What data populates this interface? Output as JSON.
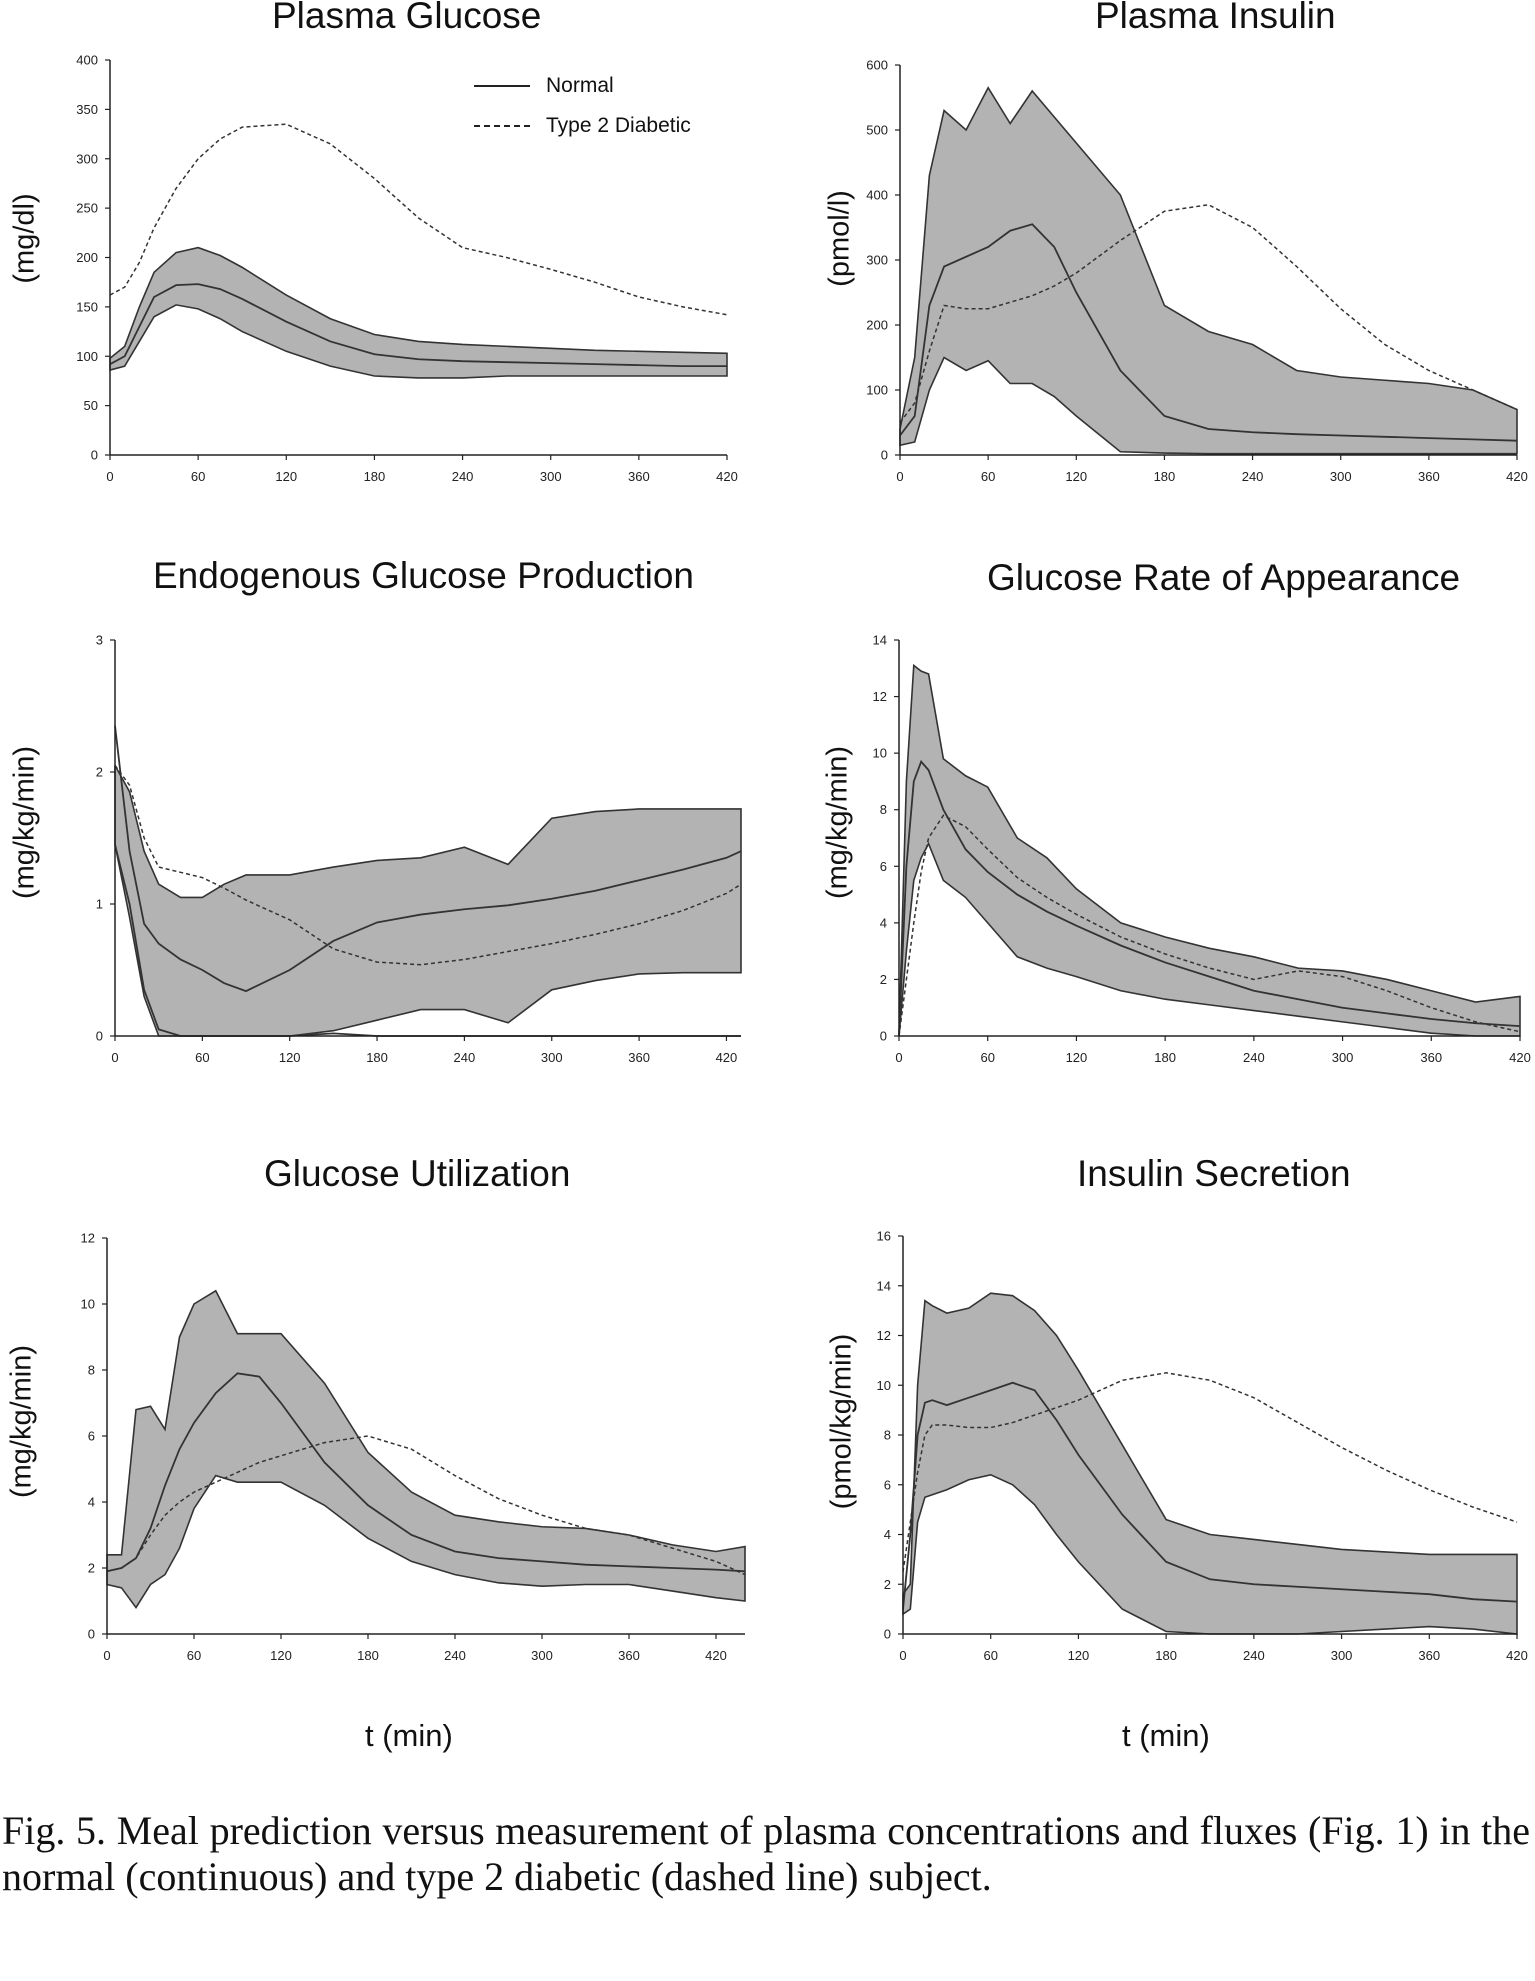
{
  "legend": {
    "normal": "Normal",
    "diabetic": "Type 2 Diabetic"
  },
  "xlabel": "t (min)",
  "caption": "Fig. 5.  Meal prediction versus measurement of plasma concentrations and fluxes (Fig. 1) in the normal (continuous) and type 2 diabetic (dashed line) subject.",
  "colors": {
    "band": "#b3b3b3",
    "line": "#333333"
  },
  "chart_data": [
    {
      "id": "glucose",
      "type": "line",
      "title": "Plasma Glucose",
      "ylabel": "(mg/dl)",
      "xlim": [
        0,
        420
      ],
      "ylim": [
        0,
        400
      ],
      "xticks": [
        0,
        60,
        120,
        180,
        240,
        300,
        360,
        420
      ],
      "yticks": [
        0,
        50,
        100,
        150,
        200,
        250,
        300,
        350,
        400
      ],
      "x": [
        0,
        10,
        20,
        30,
        45,
        60,
        75,
        90,
        120,
        150,
        180,
        210,
        240,
        270,
        300,
        330,
        360,
        390,
        420
      ],
      "series": [
        {
          "name": "Normal",
          "style": "solid",
          "values": [
            92,
            100,
            130,
            160,
            172,
            173,
            168,
            158,
            135,
            115,
            102,
            97,
            95,
            94,
            93,
            92,
            91,
            90,
            90
          ]
        },
        {
          "name": "Type 2 Diabetic",
          "style": "dashed",
          "values": [
            162,
            170,
            195,
            230,
            270,
            300,
            320,
            332,
            335,
            315,
            280,
            240,
            210,
            200,
            188,
            175,
            160,
            150,
            142
          ]
        }
      ],
      "band": {
        "upper": [
          98,
          110,
          150,
          185,
          205,
          210,
          202,
          190,
          162,
          138,
          122,
          115,
          112,
          110,
          108,
          106,
          105,
          104,
          103
        ],
        "lower": [
          86,
          90,
          115,
          140,
          152,
          148,
          138,
          125,
          105,
          90,
          80,
          78,
          78,
          80,
          80,
          80,
          80,
          80,
          80
        ]
      }
    },
    {
      "id": "insulin",
      "type": "line",
      "title": "Plasma Insulin",
      "ylabel": "(pmol/l)",
      "xlim": [
        0,
        420
      ],
      "ylim": [
        0,
        600
      ],
      "xticks": [
        0,
        60,
        120,
        180,
        240,
        300,
        360,
        420
      ],
      "yticks": [
        0,
        100,
        200,
        300,
        400,
        500,
        600
      ],
      "x": [
        0,
        10,
        20,
        30,
        45,
        60,
        75,
        90,
        105,
        120,
        150,
        180,
        210,
        240,
        270,
        300,
        330,
        360,
        390,
        420
      ],
      "series": [
        {
          "name": "Normal",
          "style": "solid",
          "values": [
            30,
            60,
            230,
            290,
            305,
            320,
            345,
            355,
            320,
            250,
            130,
            60,
            40,
            35,
            32,
            30,
            28,
            26,
            24,
            22
          ]
        },
        {
          "name": "Type 2 Diabetic",
          "style": "dashed",
          "values": [
            50,
            80,
            160,
            230,
            225,
            225,
            235,
            245,
            260,
            280,
            330,
            375,
            385,
            350,
            290,
            225,
            170,
            130,
            100,
            70
          ]
        }
      ],
      "band": {
        "upper": [
          40,
          150,
          430,
          530,
          500,
          565,
          510,
          560,
          520,
          480,
          400,
          230,
          190,
          170,
          130,
          120,
          115,
          110,
          100,
          70
        ],
        "lower": [
          15,
          20,
          100,
          150,
          130,
          145,
          110,
          110,
          90,
          60,
          5,
          3,
          2,
          2,
          2,
          2,
          2,
          2,
          2,
          2
        ]
      }
    },
    {
      "id": "egp",
      "type": "line",
      "title": "Endogenous Glucose Production",
      "ylabel": "(mg/kg/min)",
      "xlim": [
        0,
        430
      ],
      "ylim": [
        0,
        3
      ],
      "xticks": [
        0,
        60,
        120,
        180,
        240,
        300,
        360,
        420
      ],
      "yticks": [
        0,
        1,
        2,
        3
      ],
      "x": [
        0,
        10,
        20,
        30,
        45,
        60,
        75,
        90,
        120,
        150,
        180,
        210,
        240,
        270,
        300,
        330,
        360,
        390,
        420,
        430
      ],
      "series": [
        {
          "name": "Normal",
          "style": "solid",
          "values": [
            2.35,
            1.4,
            0.85,
            0.7,
            0.58,
            0.5,
            0.4,
            0.34,
            0.5,
            0.72,
            0.86,
            0.92,
            0.96,
            0.99,
            1.04,
            1.1,
            1.18,
            1.26,
            1.35,
            1.4
          ]
        },
        {
          "name": "Type 2 Diabetic",
          "style": "dashed",
          "values": [
            2.05,
            1.9,
            1.5,
            1.28,
            1.24,
            1.2,
            1.12,
            1.03,
            0.88,
            0.66,
            0.56,
            0.54,
            0.58,
            0.64,
            0.7,
            0.77,
            0.85,
            0.95,
            1.08,
            1.15
          ]
        },
        {
          "name": "",
          "style": "solid",
          "values": [
            1.45,
            1.0,
            0.35,
            0.05,
            -0.1,
            -0.12,
            -0.1,
            -0.08,
            -0.05,
            0.02,
            0.0,
            0.0,
            0.0,
            0.0,
            0.0,
            0.0,
            0.0,
            0.0,
            0.0,
            0.0
          ]
        }
      ],
      "band": {
        "upper": [
          2.05,
          1.85,
          1.4,
          1.15,
          1.05,
          1.05,
          1.15,
          1.22,
          1.22,
          1.28,
          1.33,
          1.35,
          1.43,
          1.3,
          1.65,
          1.7,
          1.72,
          1.72,
          1.72,
          1.72
        ],
        "lower": [
          1.45,
          0.9,
          0.3,
          0.0,
          0.0,
          0.0,
          0.0,
          0.0,
          0.0,
          0.04,
          0.12,
          0.2,
          0.2,
          0.1,
          0.35,
          0.42,
          0.47,
          0.48,
          0.48,
          0.48
        ]
      }
    },
    {
      "id": "ra",
      "type": "line",
      "title": "Glucose Rate of Appearance",
      "ylabel": "(mg/kg/min)",
      "xlim": [
        0,
        420
      ],
      "ylim": [
        0,
        14
      ],
      "xticks": [
        0,
        60,
        120,
        180,
        240,
        300,
        360,
        420
      ],
      "yticks": [
        0,
        2,
        4,
        6,
        8,
        10,
        12,
        14
      ],
      "x": [
        0,
        5,
        10,
        15,
        20,
        30,
        45,
        60,
        80,
        100,
        120,
        150,
        180,
        210,
        240,
        270,
        300,
        330,
        360,
        390,
        420
      ],
      "series": [
        {
          "name": "Normal",
          "style": "solid",
          "values": [
            0,
            6,
            9,
            9.7,
            9.4,
            8,
            6.6,
            5.8,
            5,
            4.4,
            3.9,
            3.2,
            2.6,
            2.1,
            1.6,
            1.3,
            1.0,
            0.8,
            0.6,
            0.45,
            0.35
          ]
        },
        {
          "name": "Type 2 Diabetic",
          "style": "dashed",
          "values": [
            0,
            2,
            4,
            5.8,
            7,
            7.8,
            7.4,
            6.6,
            5.6,
            4.9,
            4.3,
            3.5,
            2.9,
            2.4,
            2.0,
            2.3,
            2.1,
            1.6,
            1.0,
            0.5,
            0.15
          ]
        }
      ],
      "band": {
        "upper": [
          0,
          9,
          13.1,
          12.9,
          12.8,
          9.8,
          9.2,
          8.8,
          7.0,
          6.3,
          5.2,
          4.0,
          3.5,
          3.1,
          2.8,
          2.4,
          2.3,
          2.0,
          1.6,
          1.2,
          1.4
        ],
        "lower": [
          0,
          3,
          5.5,
          6.3,
          6.8,
          5.5,
          4.9,
          4.0,
          2.8,
          2.4,
          2.1,
          1.6,
          1.3,
          1.1,
          0.9,
          0.7,
          0.5,
          0.3,
          0.1,
          0.0,
          0.0
        ]
      }
    },
    {
      "id": "util",
      "type": "line",
      "title": "Glucose Utilization",
      "ylabel": "(mg/kg/min)",
      "xlim": [
        0,
        440
      ],
      "ylim": [
        0,
        12
      ],
      "xticks": [
        0,
        60,
        120,
        180,
        240,
        300,
        360,
        420
      ],
      "yticks": [
        0,
        2,
        4,
        6,
        8,
        10,
        12
      ],
      "x": [
        0,
        10,
        20,
        30,
        40,
        50,
        60,
        75,
        90,
        105,
        120,
        150,
        180,
        210,
        240,
        270,
        300,
        330,
        360,
        390,
        420,
        440
      ],
      "series": [
        {
          "name": "Normal",
          "style": "solid",
          "values": [
            1.9,
            2.0,
            2.3,
            3.2,
            4.5,
            5.6,
            6.4,
            7.3,
            7.9,
            7.8,
            7.0,
            5.2,
            3.9,
            3.0,
            2.5,
            2.3,
            2.2,
            2.1,
            2.05,
            2.0,
            1.95,
            1.9
          ]
        },
        {
          "name": "Type 2 Diabetic",
          "style": "dashed",
          "values": [
            1.9,
            2.0,
            2.3,
            3.0,
            3.6,
            4.0,
            4.3,
            4.6,
            4.9,
            5.2,
            5.4,
            5.8,
            6.0,
            5.6,
            4.8,
            4.1,
            3.6,
            3.2,
            3.0,
            2.6,
            2.2,
            1.8
          ]
        }
      ],
      "band": {
        "upper": [
          2.4,
          2.4,
          6.8,
          6.9,
          6.2,
          9.0,
          10.0,
          10.4,
          9.1,
          9.1,
          9.1,
          7.6,
          5.5,
          4.3,
          3.6,
          3.4,
          3.25,
          3.2,
          3.0,
          2.7,
          2.5,
          2.65
        ],
        "lower": [
          1.5,
          1.4,
          0.8,
          1.5,
          1.8,
          2.6,
          3.8,
          4.8,
          4.6,
          4.6,
          4.6,
          3.9,
          2.9,
          2.2,
          1.8,
          1.55,
          1.45,
          1.5,
          1.5,
          1.3,
          1.1,
          1.0
        ]
      }
    },
    {
      "id": "secretion",
      "type": "line",
      "title": "Insulin Secretion",
      "ylabel": "(pmol/kg/min)",
      "xlim": [
        0,
        420
      ],
      "ylim": [
        0,
        16
      ],
      "xticks": [
        0,
        60,
        120,
        180,
        240,
        300,
        360,
        420
      ],
      "yticks": [
        0,
        2,
        4,
        6,
        8,
        10,
        12,
        14,
        16
      ],
      "x": [
        0,
        5,
        10,
        15,
        20,
        30,
        45,
        60,
        75,
        90,
        105,
        120,
        150,
        180,
        210,
        240,
        270,
        300,
        330,
        360,
        390,
        420
      ],
      "series": [
        {
          "name": "Normal",
          "style": "solid",
          "values": [
            1.0,
            4.0,
            8.0,
            9.3,
            9.4,
            9.2,
            9.5,
            9.8,
            10.1,
            9.8,
            8.6,
            7.2,
            4.8,
            2.9,
            2.2,
            2.0,
            1.9,
            1.8,
            1.7,
            1.6,
            1.4,
            1.3
          ]
        },
        {
          "name": "Type 2 Diabetic",
          "style": "dashed",
          "values": [
            2.5,
            4.5,
            6.5,
            8.0,
            8.4,
            8.4,
            8.3,
            8.3,
            8.5,
            8.8,
            9.1,
            9.4,
            10.2,
            10.5,
            10.2,
            9.5,
            8.5,
            7.5,
            6.6,
            5.8,
            5.1,
            4.5
          ]
        }
      ],
      "band": {
        "upper": [
          1.6,
          2.0,
          10.0,
          13.4,
          13.2,
          12.9,
          13.1,
          13.7,
          13.6,
          13.0,
          12.0,
          10.6,
          7.6,
          4.6,
          4.0,
          3.8,
          3.6,
          3.4,
          3.3,
          3.2,
          3.2,
          3.2
        ],
        "lower": [
          0.8,
          1.0,
          4.5,
          5.5,
          5.6,
          5.8,
          6.2,
          6.4,
          6.0,
          5.2,
          4.0,
          2.9,
          1.0,
          0.1,
          0.0,
          0.0,
          0.0,
          0.1,
          0.2,
          0.3,
          0.2,
          0.0
        ]
      }
    }
  ]
}
